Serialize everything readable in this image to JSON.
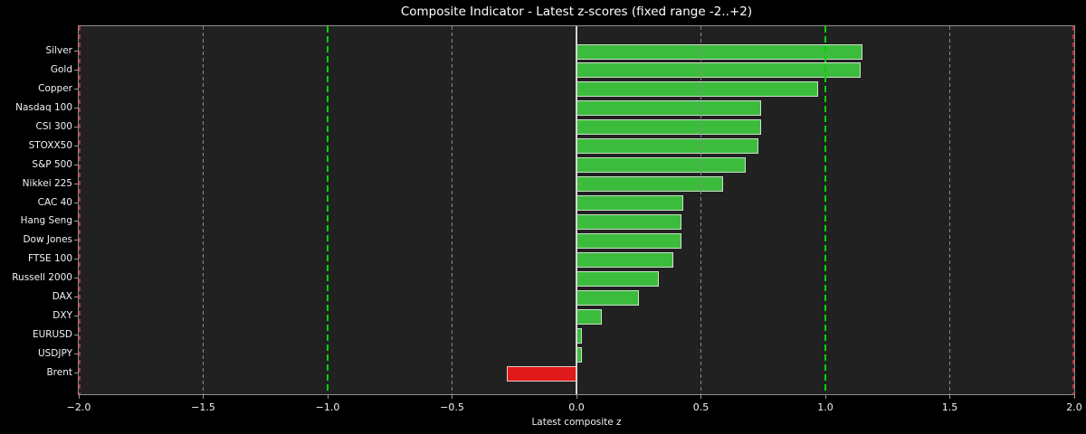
{
  "title": "Composite Indicator - Latest z-scores (fixed range -2..+2)",
  "chart_data": {
    "type": "bar",
    "orientation": "horizontal",
    "title": "Composite Indicator - Latest z-scores (fixed range -2..+2)",
    "xlabel": "Latest composite z",
    "ylabel": "",
    "xlim": [
      -2,
      2
    ],
    "grid": true,
    "legend": null,
    "categories": [
      "Silver",
      "Gold",
      "Copper",
      "Nasdaq 100",
      "CSI 300",
      "STOXX50",
      "S&P 500",
      "Nikkei 225",
      "CAC 40",
      "Hang Seng",
      "Dow Jones",
      "FTSE 100",
      "Russell 2000",
      "DAX",
      "DXY",
      "EURUSD",
      "USDJPY",
      "Brent"
    ],
    "values": [
      1.15,
      1.14,
      0.97,
      0.74,
      0.74,
      0.73,
      0.68,
      0.59,
      0.43,
      0.42,
      0.42,
      0.39,
      0.33,
      0.25,
      0.1,
      0.02,
      0.02,
      -0.28
    ],
    "x_ticks": [
      {
        "value": -2.0,
        "label": "−2.0"
      },
      {
        "value": -1.5,
        "label": "−1.5"
      },
      {
        "value": -1.0,
        "label": "−1.0"
      },
      {
        "value": -0.5,
        "label": "−0.5"
      },
      {
        "value": 0.0,
        "label": "0.0"
      },
      {
        "value": 0.5,
        "label": "0.5"
      },
      {
        "value": 1.0,
        "label": "1.0"
      },
      {
        "value": 1.5,
        "label": "1.5"
      },
      {
        "value": 2.0,
        "label": "2.0"
      }
    ],
    "grid_x": [
      -1.5,
      -0.5,
      0.5,
      1.5
    ],
    "reference_lines": [
      {
        "x": -2.0,
        "style": "red-dashed"
      },
      {
        "x": -1.0,
        "style": "green-dashed"
      },
      {
        "x": 1.0,
        "style": "green-dashed"
      },
      {
        "x": 2.0,
        "style": "red-dashed"
      },
      {
        "x": 0.0,
        "style": "zero-solid"
      }
    ],
    "colors": {
      "positive_bar": "#3cbc3c",
      "negative_bar": "#e01a1a",
      "bar_edge": "#e6e6e6",
      "reference_green": "#00d400",
      "reference_red": "#b23535",
      "zero_line": "#d4d4d4",
      "grid": "#8a8a8a",
      "plot_background": "#212121",
      "figure_background": "#000000",
      "text": "#ffffff"
    }
  }
}
